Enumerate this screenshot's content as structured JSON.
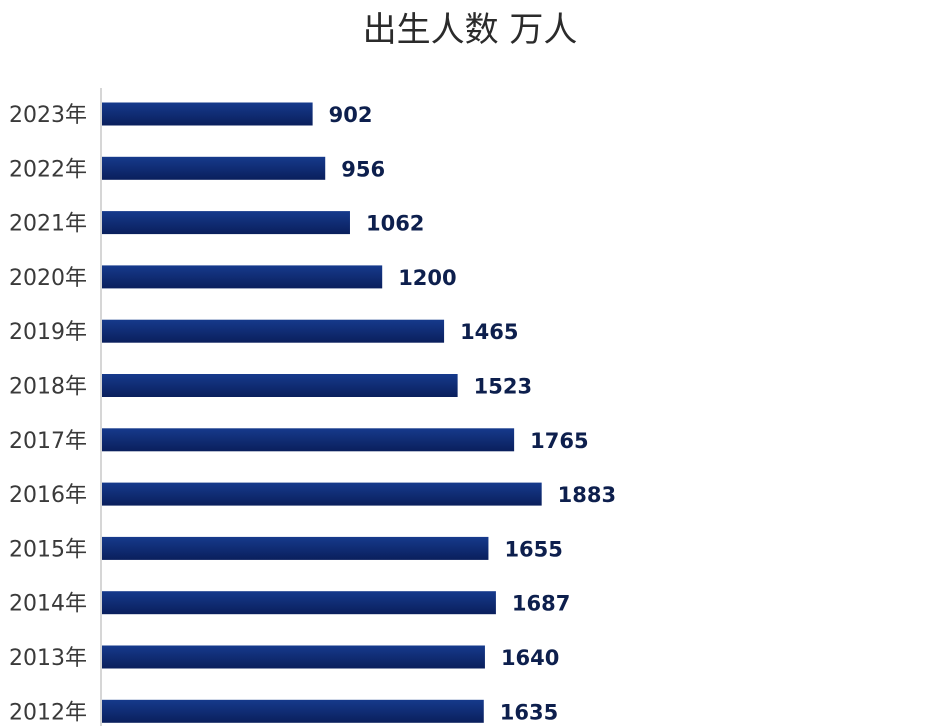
{
  "chart_data": {
    "type": "bar",
    "orientation": "horizontal",
    "title": "出生人数 万人",
    "xlabel": "",
    "ylabel": "",
    "categories": [
      "2023年",
      "2022年",
      "2021年",
      "2020年",
      "2019年",
      "2018年",
      "2017年",
      "2016年",
      "2015年",
      "2014年",
      "2013年",
      "2012年"
    ],
    "values": [
      902,
      956,
      1062,
      1200,
      1465,
      1523,
      1765,
      1883,
      1655,
      1687,
      1640,
      1635
    ],
    "xlim": [
      0,
      3400
    ],
    "grid": false,
    "legend": "none",
    "colors": {
      "bar": "#0f2c75",
      "bar_dark": "#0a1f5c",
      "axis": "#c8c8c8",
      "label": "#0d1f4d"
    }
  }
}
